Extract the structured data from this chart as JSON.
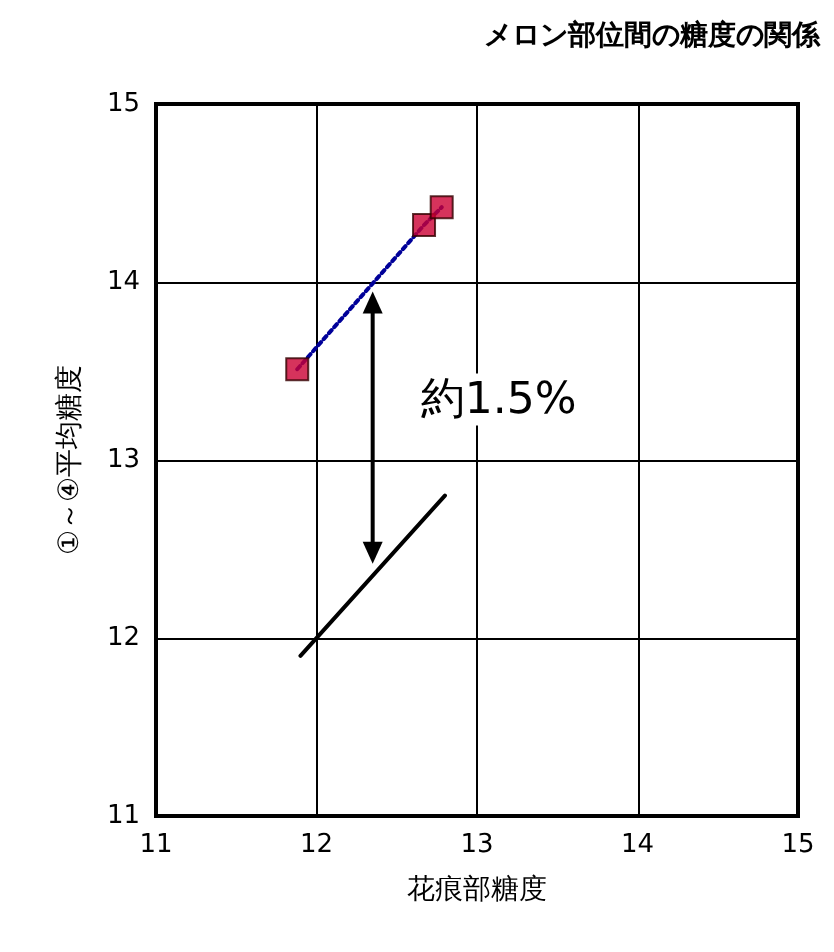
{
  "chart_data": {
    "type": "scatter",
    "title": "メロン部位間の糖度の関係",
    "xlabel": "花痕部糖度",
    "ylabel": "①～④平均糖度",
    "xlim": [
      11,
      15
    ],
    "xticks": [
      11,
      12,
      13,
      14,
      15
    ],
    "ylim": [
      11,
      15
    ],
    "yticks": [
      11,
      12,
      13,
      14,
      15
    ],
    "grid": true,
    "annotations": [
      "約1.5%"
    ],
    "series": [
      {
        "type": "line",
        "color": "#000099",
        "x": [
          11.88,
          12.67,
          12.78
        ],
        "values": [
          13.51,
          14.32,
          14.42
        ],
        "marker": "none",
        "line_style": "dotted"
      },
      {
        "type": "scatter",
        "color": "#cc0033",
        "x": [
          11.88,
          12.67,
          12.78
        ],
        "values": [
          13.51,
          14.32,
          14.42
        ],
        "marker": "square"
      },
      {
        "type": "line",
        "color": "#000000",
        "x": [
          11.9,
          12.8
        ],
        "values": [
          11.9,
          12.8
        ],
        "marker": "none",
        "line_style": "solid"
      }
    ]
  }
}
